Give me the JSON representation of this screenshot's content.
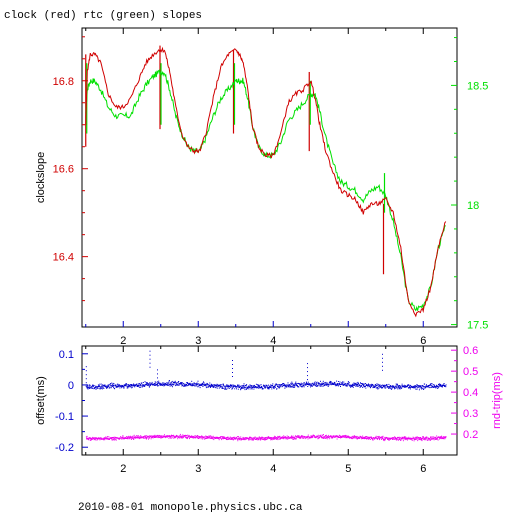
{
  "title": "clock (red) rtc (green) slopes",
  "footer": "2010-08-01 monopole.physics.ubc.ca",
  "colors": {
    "clock": "#d00000",
    "rtc": "#00e000",
    "offset": "#0000cc",
    "rndtrip": "#ee00ee",
    "axis_bottom": "#0000cc",
    "frame": "#000000"
  },
  "chart_data": [
    {
      "type": "line",
      "ylabel": "clockslope",
      "y2label": "",
      "xlim": [
        1.45,
        6.45
      ],
      "ylim": [
        16.24,
        16.92
      ],
      "y2lim": [
        17.49,
        18.74
      ],
      "x_ticks": [
        2,
        3,
        4,
        5,
        6
      ],
      "y_ticks": [
        16.4,
        16.6,
        16.8
      ],
      "y_tick_labels": [
        "16.4",
        "16.6",
        "16.8"
      ],
      "y2_ticks": [
        17.5,
        18,
        18.5
      ],
      "y2_tick_labels": [
        "17.5",
        "18",
        "18.5"
      ],
      "series": [
        {
          "name": "clock",
          "axis": "left",
          "x": [
            1.5,
            1.52,
            1.56,
            1.62,
            1.7,
            1.8,
            1.9,
            2.0,
            2.1,
            2.2,
            2.3,
            2.4,
            2.48,
            2.55,
            2.62,
            2.7,
            2.78,
            2.86,
            2.94,
            3.02,
            3.1,
            3.2,
            3.3,
            3.4,
            3.5,
            3.55,
            3.6,
            3.66,
            3.72,
            3.8,
            3.9,
            4.0,
            4.1,
            4.2,
            4.3,
            4.4,
            4.5,
            4.56,
            4.62,
            4.7,
            4.8,
            4.9,
            5.0,
            5.1,
            5.2,
            5.3,
            5.4,
            5.5,
            5.6,
            5.7,
            5.8,
            5.9,
            6.0,
            6.1,
            6.2,
            6.3
          ],
          "y": [
            16.7,
            16.82,
            16.86,
            16.86,
            16.84,
            16.77,
            16.74,
            16.74,
            16.76,
            16.8,
            16.84,
            16.86,
            16.87,
            16.87,
            16.82,
            16.74,
            16.68,
            16.65,
            16.64,
            16.64,
            16.68,
            16.76,
            16.83,
            16.86,
            16.87,
            16.86,
            16.84,
            16.78,
            16.7,
            16.65,
            16.63,
            16.63,
            16.68,
            16.75,
            16.77,
            16.78,
            16.8,
            16.76,
            16.7,
            16.64,
            16.59,
            16.55,
            16.54,
            16.53,
            16.5,
            16.52,
            16.52,
            16.53,
            16.5,
            16.42,
            16.3,
            16.27,
            16.28,
            16.33,
            16.42,
            16.48
          ]
        },
        {
          "name": "rtc",
          "axis": "left",
          "x": [
            1.5,
            1.52,
            1.56,
            1.62,
            1.7,
            1.8,
            1.9,
            2.0,
            2.1,
            2.2,
            2.3,
            2.4,
            2.48,
            2.55,
            2.62,
            2.7,
            2.78,
            2.86,
            2.94,
            3.02,
            3.1,
            3.2,
            3.3,
            3.4,
            3.5,
            3.55,
            3.6,
            3.66,
            3.72,
            3.8,
            3.9,
            4.0,
            4.1,
            4.2,
            4.3,
            4.4,
            4.5,
            4.56,
            4.62,
            4.7,
            4.8,
            4.9,
            5.0,
            5.1,
            5.2,
            5.3,
            5.4,
            5.5,
            5.6,
            5.7,
            5.8,
            5.9,
            6.0,
            6.1,
            6.2,
            6.3
          ],
          "y": [
            16.72,
            16.78,
            16.8,
            16.8,
            16.78,
            16.74,
            16.72,
            16.72,
            16.72,
            16.76,
            16.79,
            16.81,
            16.82,
            16.82,
            16.78,
            16.72,
            16.68,
            16.65,
            16.64,
            16.64,
            16.67,
            16.72,
            16.76,
            16.78,
            16.8,
            16.8,
            16.8,
            16.76,
            16.7,
            16.65,
            16.63,
            16.63,
            16.66,
            16.71,
            16.73,
            16.75,
            16.77,
            16.77,
            16.73,
            16.67,
            16.61,
            16.57,
            16.56,
            16.55,
            16.53,
            16.55,
            16.56,
            16.54,
            16.48,
            16.4,
            16.3,
            16.28,
            16.29,
            16.33,
            16.42,
            16.47
          ]
        }
      ],
      "spikes_clock": [
        [
          1.5,
          16.65,
          16.86
        ],
        [
          2.49,
          16.69,
          16.88
        ],
        [
          3.47,
          16.68,
          16.87
        ],
        [
          4.48,
          16.64,
          16.82
        ],
        [
          5.47,
          16.36,
          16.52
        ]
      ],
      "spikes_rtc": [
        [
          1.5,
          16.68,
          16.84
        ],
        [
          2.49,
          16.7,
          16.84
        ],
        [
          3.47,
          16.7,
          16.84
        ],
        [
          4.48,
          16.7,
          16.8
        ],
        [
          5.47,
          16.5,
          16.59
        ]
      ]
    },
    {
      "type": "scatter",
      "ylabel": "offset(ms)",
      "y2label": "rnd-trip(ms)",
      "xlim": [
        1.45,
        6.45
      ],
      "ylim": [
        -0.225,
        0.125
      ],
      "y2lim": [
        0.1,
        0.62
      ],
      "x_ticks": [
        2,
        3,
        4,
        5,
        6
      ],
      "y_ticks": [
        -0.2,
        -0.1,
        0,
        0.1
      ],
      "y_tick_labels": [
        "-0.2",
        "-0.1",
        "0",
        "0.1"
      ],
      "y2_ticks": [
        0.2,
        0.3,
        0.4,
        0.5,
        0.6
      ],
      "y2_tick_labels": [
        "0.2",
        "0.3",
        "0.4",
        "0.5",
        "0.6"
      ],
      "series": [
        {
          "name": "offset",
          "axis": "left",
          "x_range": [
            1.5,
            6.3
          ],
          "center": 0.0,
          "spread": 0.012,
          "count": 1400
        },
        {
          "name": "rnd-trip",
          "axis": "right",
          "x_range": [
            1.5,
            6.3
          ],
          "center": 0.185,
          "spread": 0.012,
          "count": 1400
        }
      ],
      "outliers": [
        [
          2.35,
          0.11
        ],
        [
          1.5,
          0.06
        ],
        [
          2.45,
          0.05
        ],
        [
          3.45,
          0.08
        ],
        [
          4.45,
          0.07
        ],
        [
          5.45,
          0.1
        ]
      ]
    }
  ]
}
